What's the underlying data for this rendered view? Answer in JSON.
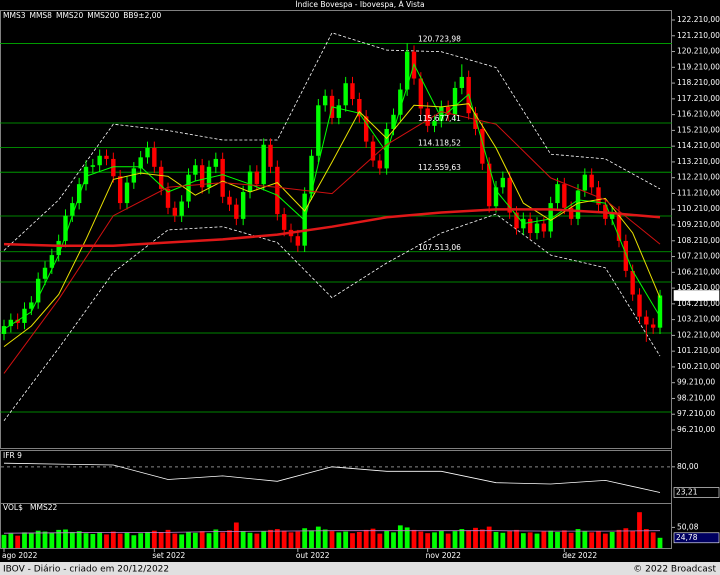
{
  "title": "Índice Bovespa - Ibovespa, À Vista",
  "footer_left": "IBOV - Diário - criado em 20/12/2022",
  "footer_right": "© 2022 Broadcast",
  "chart_data": [
    {
      "type": "candlestick",
      "up_color": "#00ff00",
      "down_color": "#ff0000",
      "open": [
        102300,
        102800,
        103200,
        103000,
        103900,
        104300,
        105800,
        106500,
        107300,
        108200,
        109800,
        110600,
        111800,
        112900,
        113000,
        113600,
        113400,
        112300,
        110600,
        111900,
        112800,
        113500,
        114100,
        112900,
        111500,
        110300,
        109800,
        110700,
        112400,
        113000,
        111600,
        112900,
        113400,
        111000,
        110500,
        109600,
        111300,
        112600,
        111800,
        114300,
        112900,
        109900,
        108900,
        108500,
        107900,
        111200,
        113600,
        116800,
        117400,
        116000,
        116800,
        118200,
        117200,
        116100,
        114500,
        113300,
        112800,
        115300,
        116200,
        117800,
        120200,
        118500,
        116600,
        115500,
        115800,
        116700,
        116200,
        117900,
        118600,
        116300,
        115300,
        113100,
        110400,
        111600,
        112200,
        110000,
        109000,
        109600,
        108700,
        109300,
        108800,
        110600,
        111800,
        110300,
        109600,
        111400,
        112400,
        111600,
        110500,
        109600,
        110000,
        108200,
        106300,
        104800,
        103400,
        102900,
        102700
      ],
      "high": [
        103200,
        103600,
        103600,
        104300,
        104700,
        106200,
        106900,
        107700,
        108600,
        110200,
        111000,
        112200,
        113300,
        113400,
        114000,
        114000,
        113800,
        112700,
        112300,
        113200,
        113900,
        114500,
        114500,
        113300,
        111900,
        110700,
        111100,
        112800,
        113400,
        113400,
        113300,
        113800,
        113800,
        111400,
        110900,
        111700,
        113000,
        113000,
        114700,
        114700,
        113300,
        110300,
        109300,
        108900,
        111600,
        114000,
        117200,
        117800,
        117800,
        117200,
        118600,
        118600,
        117600,
        116500,
        114900,
        113700,
        115700,
        116600,
        118200,
        120723.98,
        120600,
        118900,
        117000,
        116200,
        117100,
        117100,
        118300,
        119400,
        119000,
        116700,
        115700,
        113500,
        112000,
        112600,
        112600,
        110400,
        110000,
        110000,
        109700,
        109700,
        111000,
        112200,
        112200,
        110700,
        111800,
        112800,
        112800,
        112000,
        110900,
        110400,
        110400,
        108600,
        106700,
        105200,
        103800,
        103300,
        105100
      ],
      "low": [
        101900,
        102400,
        102600,
        102600,
        103500,
        103900,
        105400,
        106100,
        106900,
        107800,
        109400,
        110200,
        111400,
        112500,
        112600,
        113000,
        111900,
        110200,
        110200,
        111500,
        112400,
        113100,
        112500,
        111100,
        109900,
        109400,
        109400,
        110300,
        112000,
        111200,
        111200,
        112500,
        110600,
        110100,
        109200,
        109200,
        110900,
        111400,
        111400,
        112500,
        109500,
        108500,
        108100,
        107513.06,
        107500,
        110800,
        113200,
        116400,
        115600,
        115600,
        116400,
        116800,
        115700,
        114100,
        112900,
        112400,
        112400,
        114900,
        115800,
        117400,
        118100,
        116200,
        115100,
        115100,
        115400,
        115800,
        115800,
        117500,
        115900,
        114900,
        112700,
        110000,
        110000,
        111200,
        109600,
        108600,
        108600,
        108300,
        108300,
        108400,
        108400,
        110200,
        109900,
        109200,
        109200,
        111000,
        111200,
        110100,
        109200,
        109200,
        107800,
        105900,
        104400,
        103000,
        101800,
        102300,
        102300
      ],
      "close": [
        102800,
        103200,
        103000,
        103900,
        104300,
        105800,
        106500,
        107300,
        108200,
        109800,
        110600,
        111800,
        112900,
        113000,
        113600,
        113400,
        112300,
        110600,
        111900,
        112800,
        113500,
        114100,
        112900,
        111500,
        110300,
        109800,
        110700,
        112400,
        113000,
        111600,
        112900,
        113400,
        111000,
        110500,
        109600,
        111300,
        112600,
        111800,
        114300,
        112900,
        109900,
        108900,
        108500,
        107900,
        111200,
        113600,
        116800,
        117400,
        116000,
        116800,
        118200,
        117200,
        116100,
        114500,
        113300,
        112800,
        115300,
        116200,
        117800,
        120200,
        118500,
        116600,
        115500,
        115800,
        116700,
        116200,
        117900,
        118600,
        116300,
        115300,
        113100,
        110400,
        111600,
        112200,
        110000,
        109000,
        109600,
        108700,
        109300,
        108800,
        110600,
        111800,
        110300,
        109600,
        111400,
        112400,
        111600,
        110500,
        109600,
        110000,
        108200,
        106300,
        104800,
        103400,
        102900,
        102700,
        104739.75
      ],
      "last_close_label": "104.739,75",
      "ylim": [
        95069,
        122844
      ],
      "yticks": [
        {
          "value": 96210,
          "label": "96.210,00"
        },
        {
          "value": 97210,
          "label": "97.210,00"
        },
        {
          "value": 98210,
          "label": "98.210,00"
        },
        {
          "value": 99210,
          "label": "99.210,00"
        },
        {
          "value": 100210,
          "label": "100.210,00"
        },
        {
          "value": 101210,
          "label": "101.210,00"
        },
        {
          "value": 102210,
          "label": "102.210,00"
        },
        {
          "value": 103210,
          "label": "103.210,00"
        },
        {
          "value": 104210,
          "label": "104.210,00"
        },
        {
          "value": 105210,
          "label": "105.210,00"
        },
        {
          "value": 106210,
          "label": "106.210,00"
        },
        {
          "value": 107210,
          "label": "107.210,00"
        },
        {
          "value": 108210,
          "label": "108.210,00"
        },
        {
          "value": 109210,
          "label": "109.210,00"
        },
        {
          "value": 110210,
          "label": "110.210,00"
        },
        {
          "value": 111210,
          "label": "111.210,00"
        },
        {
          "value": 112210,
          "label": "112.210,00"
        },
        {
          "value": 113210,
          "label": "113.210,00"
        },
        {
          "value": 114210,
          "label": "114.210,00"
        },
        {
          "value": 115210,
          "label": "115.210,00"
        },
        {
          "value": 116210,
          "label": "116.210,00"
        },
        {
          "value": 117210,
          "label": "117.210,00"
        },
        {
          "value": 118210,
          "label": "118.210,00"
        },
        {
          "value": 119210,
          "label": "119.210,00"
        },
        {
          "value": 120210,
          "label": "120.210,00"
        },
        {
          "value": 121210,
          "label": "121.210,00"
        },
        {
          "value": 122210,
          "label": "122.210,00"
        }
      ],
      "xticks": [
        {
          "value": 0,
          "label": "ago 2022"
        },
        {
          "value": 22,
          "label": "set 2022"
        },
        {
          "value": 43,
          "label": "out 2022"
        },
        {
          "value": 62,
          "label": "nov 2022"
        },
        {
          "value": 82,
          "label": "dez 2022"
        }
      ],
      "levels": [
        {
          "value": 120723.98,
          "label": "120.723,98"
        },
        {
          "value": 115677.41,
          "label": "115.677,41"
        },
        {
          "value": 114118.52,
          "label": "114.118,52"
        },
        {
          "value": 112559.63,
          "label": "112.559,63"
        },
        {
          "value": 107513.06,
          "label": "107.513,06"
        }
      ],
      "level_color": "#00b000",
      "support_lines": [
        109782,
        106928,
        105597,
        102363,
        97354
      ],
      "series": [
        {
          "name": "MMS3",
          "color": "#00ff00",
          "width": 1,
          "x": [
            0,
            4,
            8,
            12,
            16,
            20,
            24,
            28,
            32,
            36,
            40,
            44,
            48,
            52,
            56,
            60,
            64,
            68,
            72,
            76,
            80,
            84,
            88,
            92,
            96
          ],
          "values": [
            102600,
            103700,
            107300,
            112300,
            112900,
            112900,
            111300,
            112000,
            112400,
            111800,
            111100,
            109500,
            116700,
            116300,
            113800,
            119400,
            116000,
            117500,
            111400,
            109300,
            109600,
            110800,
            110600,
            106300,
            103400
          ]
        },
        {
          "name": "MMS8",
          "color": "#e8e000",
          "width": 1,
          "x": [
            0,
            4,
            8,
            12,
            16,
            20,
            24,
            28,
            32,
            36,
            40,
            44,
            48,
            52,
            56,
            60,
            64,
            68,
            72,
            76,
            80,
            84,
            88,
            92,
            96
          ],
          "values": [
            101500,
            102800,
            104800,
            108300,
            112100,
            112500,
            112300,
            111100,
            112000,
            111300,
            111900,
            110100,
            113200,
            116400,
            114700,
            116800,
            116700,
            116900,
            114100,
            110600,
            109500,
            110600,
            110900,
            108700,
            104600
          ]
        },
        {
          "name": "MMS20",
          "color": "#d01010",
          "width": 1,
          "x": [
            0,
            8,
            16,
            24,
            32,
            40,
            48,
            56,
            64,
            72,
            80,
            88,
            96
          ],
          "values": [
            99800,
            104500,
            109800,
            111600,
            111900,
            111600,
            111200,
            114300,
            116400,
            115600,
            112200,
            110800,
            108000
          ]
        },
        {
          "name": "MMS200",
          "color": "#e01818",
          "width": 2.5,
          "x": [
            0,
            8,
            16,
            24,
            32,
            40,
            48,
            56,
            64,
            72,
            80,
            88,
            96
          ],
          "values": [
            108000,
            107900,
            107900,
            108100,
            108300,
            108600,
            109100,
            109700,
            110000,
            110200,
            110200,
            110000,
            109700
          ]
        }
      ],
      "bands": {
        "name": "BB9±2,00",
        "color": "#ffffff",
        "x": [
          0,
          8,
          16,
          24,
          32,
          40,
          48,
          56,
          64,
          72,
          80,
          88,
          96
        ],
        "upper": [
          107600,
          110800,
          115600,
          115200,
          114600,
          114600,
          121400,
          120300,
          120200,
          119200,
          113700,
          113400,
          111500
        ],
        "lower": [
          96800,
          101400,
          106200,
          108900,
          109100,
          108100,
          104600,
          106800,
          108700,
          109900,
          107300,
          106500,
          100900
        ]
      }
    },
    {
      "type": "line",
      "title": "IFR 9",
      "color": "#ffffff",
      "x": [
        0,
        8,
        16,
        24,
        32,
        40,
        48,
        56,
        64,
        72,
        80,
        88,
        96
      ],
      "values": [
        88,
        86,
        84,
        52,
        60,
        48,
        80,
        70,
        70,
        45,
        42,
        50,
        23.21
      ],
      "value_labels": [
        null,
        null,
        null,
        null,
        null,
        null,
        null,
        null,
        null,
        null,
        null,
        null,
        "23,21"
      ],
      "ylim": [
        0,
        115
      ],
      "yticks": [
        {
          "value": 80,
          "label": "80,00"
        }
      ]
    },
    {
      "type": "bar",
      "title": "VOL$",
      "values": [
        32,
        35,
        30,
        38,
        36,
        42,
        40,
        37,
        44,
        45,
        39,
        41,
        36,
        34,
        38,
        33,
        40,
        35,
        37,
        31,
        36,
        39,
        42,
        38,
        44,
        35,
        33,
        39,
        37,
        41,
        36,
        45,
        38,
        43,
        62,
        40,
        37,
        35,
        41,
        44,
        46,
        42,
        38,
        40,
        48,
        43,
        52,
        45,
        41,
        38,
        40,
        36,
        39,
        44,
        47,
        35,
        42,
        38,
        55,
        50,
        44,
        40,
        36,
        38,
        42,
        35,
        41,
        46,
        43,
        49,
        45,
        52,
        39,
        37,
        41,
        44,
        36,
        38,
        35,
        40,
        42,
        39,
        43,
        37,
        46,
        40,
        38,
        41,
        35,
        39,
        44,
        48,
        42,
        87,
        46,
        38,
        24.78
      ],
      "last_label": "24,78",
      "ylim": [
        0,
        87.5
      ],
      "yticks": [
        {
          "value": 50.08,
          "label": "50,08"
        }
      ],
      "series": [
        {
          "name": "MMS22",
          "color": "#c080d0",
          "x": [
            0,
            8,
            16,
            24,
            32,
            40,
            48,
            56,
            64,
            72,
            80,
            88,
            96
          ],
          "values": [
            36,
            37,
            38,
            38,
            40,
            41,
            42,
            42,
            42,
            42,
            41,
            41,
            42
          ]
        }
      ]
    }
  ]
}
